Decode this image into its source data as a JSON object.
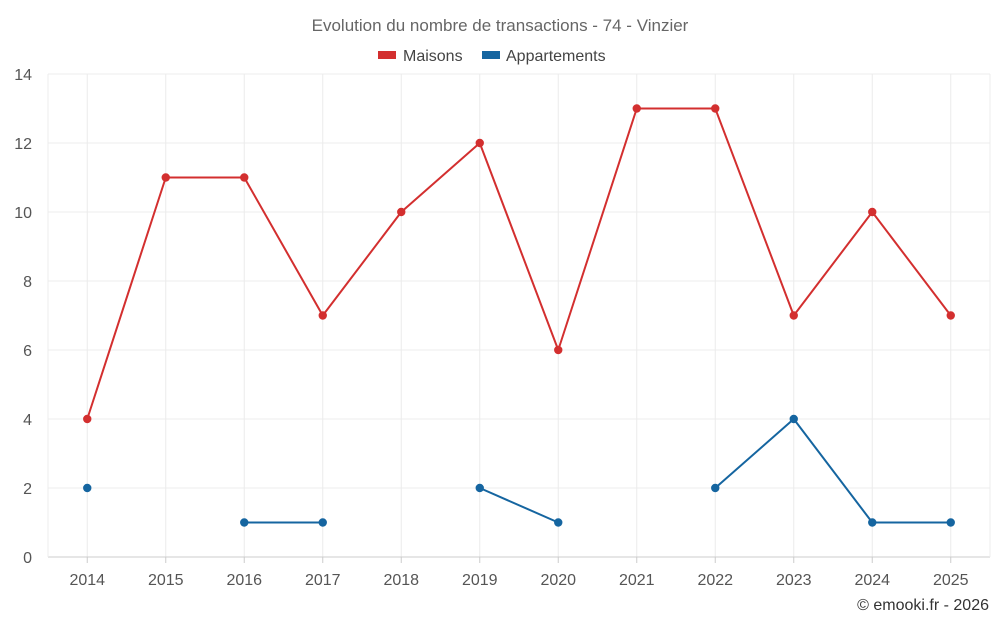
{
  "chart_data": {
    "type": "line",
    "title": "Evolution du nombre de transactions - 74 - Vinzier",
    "xlabel": "",
    "ylabel": "",
    "ylim": [
      0,
      14
    ],
    "yticks": [
      0,
      2,
      4,
      6,
      8,
      10,
      12,
      14
    ],
    "categories": [
      "2014",
      "2015",
      "2016",
      "2017",
      "2018",
      "2019",
      "2020",
      "2021",
      "2022",
      "2023",
      "2024",
      "2025"
    ],
    "series": [
      {
        "name": "Maisons",
        "color": "#d32f2f",
        "values": [
          4,
          11,
          11,
          7,
          10,
          12,
          6,
          13,
          13,
          7,
          10,
          7
        ]
      },
      {
        "name": "Appartements",
        "color": "#1565a0",
        "values": [
          2,
          null,
          1,
          1,
          null,
          2,
          1,
          null,
          2,
          4,
          1,
          1
        ]
      }
    ],
    "legend": "top-center",
    "grid": true
  },
  "credit": "© emooki.fr - 2026"
}
